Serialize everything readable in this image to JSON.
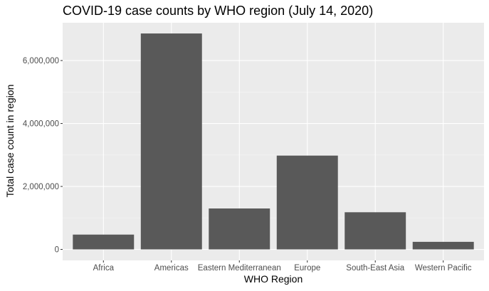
{
  "chart_data": {
    "type": "bar",
    "title": "COVID-19 case counts by WHO region (July 14, 2020)",
    "xlabel": "WHO Region",
    "ylabel": "Total case count in region",
    "categories": [
      "Africa",
      "Americas",
      "Eastern Mediterranean",
      "Europe",
      "South-East Asia",
      "Western Pacific"
    ],
    "values": [
      470000,
      6860000,
      1300000,
      2980000,
      1180000,
      240000
    ],
    "ylim": [
      -350000,
      7200000
    ],
    "yticks": [
      0,
      2000000,
      4000000,
      6000000
    ],
    "ytick_labels": [
      "0",
      "2,000,000",
      "4,000,000",
      "6,000,000"
    ],
    "grid": true,
    "colors": {
      "bar": "#595959",
      "panel": "#ebebeb",
      "grid_major": "#ffffff",
      "grid_minor": "#f5f5f5",
      "tick_text": "#4d4d4d",
      "tick_mark": "#333333"
    }
  }
}
